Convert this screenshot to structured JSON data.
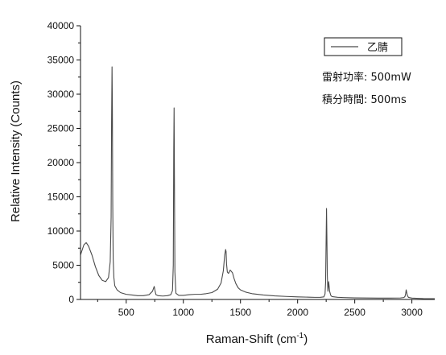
{
  "chart_data": {
    "type": "line",
    "title": "",
    "xlabel": "Raman-Shift (cm",
    "xlabel_sup": "-1",
    "xlabel_tail": ")",
    "ylabel": "Relative Intensity (Counts)",
    "xlim": [
      100,
      3200
    ],
    "ylim": [
      0,
      40000
    ],
    "x_ticks": [
      500,
      1000,
      1500,
      2000,
      2500,
      3000
    ],
    "y_ticks": [
      0,
      5000,
      10000,
      15000,
      20000,
      25000,
      30000,
      35000,
      40000
    ],
    "grid": false,
    "legend_position": "top-right",
    "line_color": "#4a4a4a",
    "series": [
      {
        "name": "乙腈",
        "x": [
          100,
          130,
          150,
          170,
          200,
          230,
          260,
          290,
          320,
          345,
          360,
          368,
          372,
          376,
          379,
          382,
          386,
          392,
          400,
          420,
          450,
          500,
          550,
          600,
          650,
          700,
          730,
          745,
          752,
          760,
          780,
          820,
          860,
          890,
          905,
          912,
          916,
          919,
          922,
          926,
          935,
          960,
          1000,
          1050,
          1100,
          1150,
          1200,
          1250,
          1300,
          1330,
          1350,
          1362,
          1370,
          1374,
          1378,
          1385,
          1395,
          1410,
          1430,
          1445,
          1460,
          1480,
          1500,
          1550,
          1600,
          1700,
          1800,
          1900,
          2000,
          2100,
          2150,
          2200,
          2230,
          2240,
          2245,
          2249,
          2253,
          2256,
          2260,
          2265,
          2272,
          2280,
          2290,
          2300,
          2350,
          2400,
          2500,
          2600,
          2700,
          2800,
          2900,
          2930,
          2940,
          2946,
          2950,
          2954,
          2960,
          2970,
          3000,
          3100,
          3200
        ],
        "y": [
          6500,
          8000,
          8300,
          7800,
          6500,
          4800,
          3500,
          2800,
          2600,
          3200,
          5500,
          12000,
          26000,
          34000,
          28000,
          14000,
          6000,
          3200,
          2000,
          1400,
          1000,
          750,
          650,
          550,
          550,
          700,
          1200,
          1900,
          1300,
          700,
          550,
          500,
          550,
          700,
          1300,
          5000,
          22000,
          28000,
          18000,
          4000,
          900,
          600,
          600,
          700,
          750,
          750,
          850,
          1000,
          1500,
          2400,
          4200,
          6500,
          7300,
          7000,
          5200,
          4000,
          3800,
          4300,
          3900,
          3000,
          2300,
          1700,
          1400,
          1050,
          850,
          650,
          520,
          440,
          380,
          330,
          310,
          320,
          380,
          800,
          2500,
          8000,
          13300,
          9500,
          3500,
          1200,
          2600,
          1200,
          600,
          420,
          320,
          280,
          230,
          210,
          200,
          200,
          220,
          280,
          450,
          900,
          1400,
          1100,
          600,
          300,
          200,
          130,
          110
        ]
      }
    ]
  },
  "annotations": {
    "power": "雷射功率: 500mW",
    "integration": "積分時間: 500ms"
  }
}
